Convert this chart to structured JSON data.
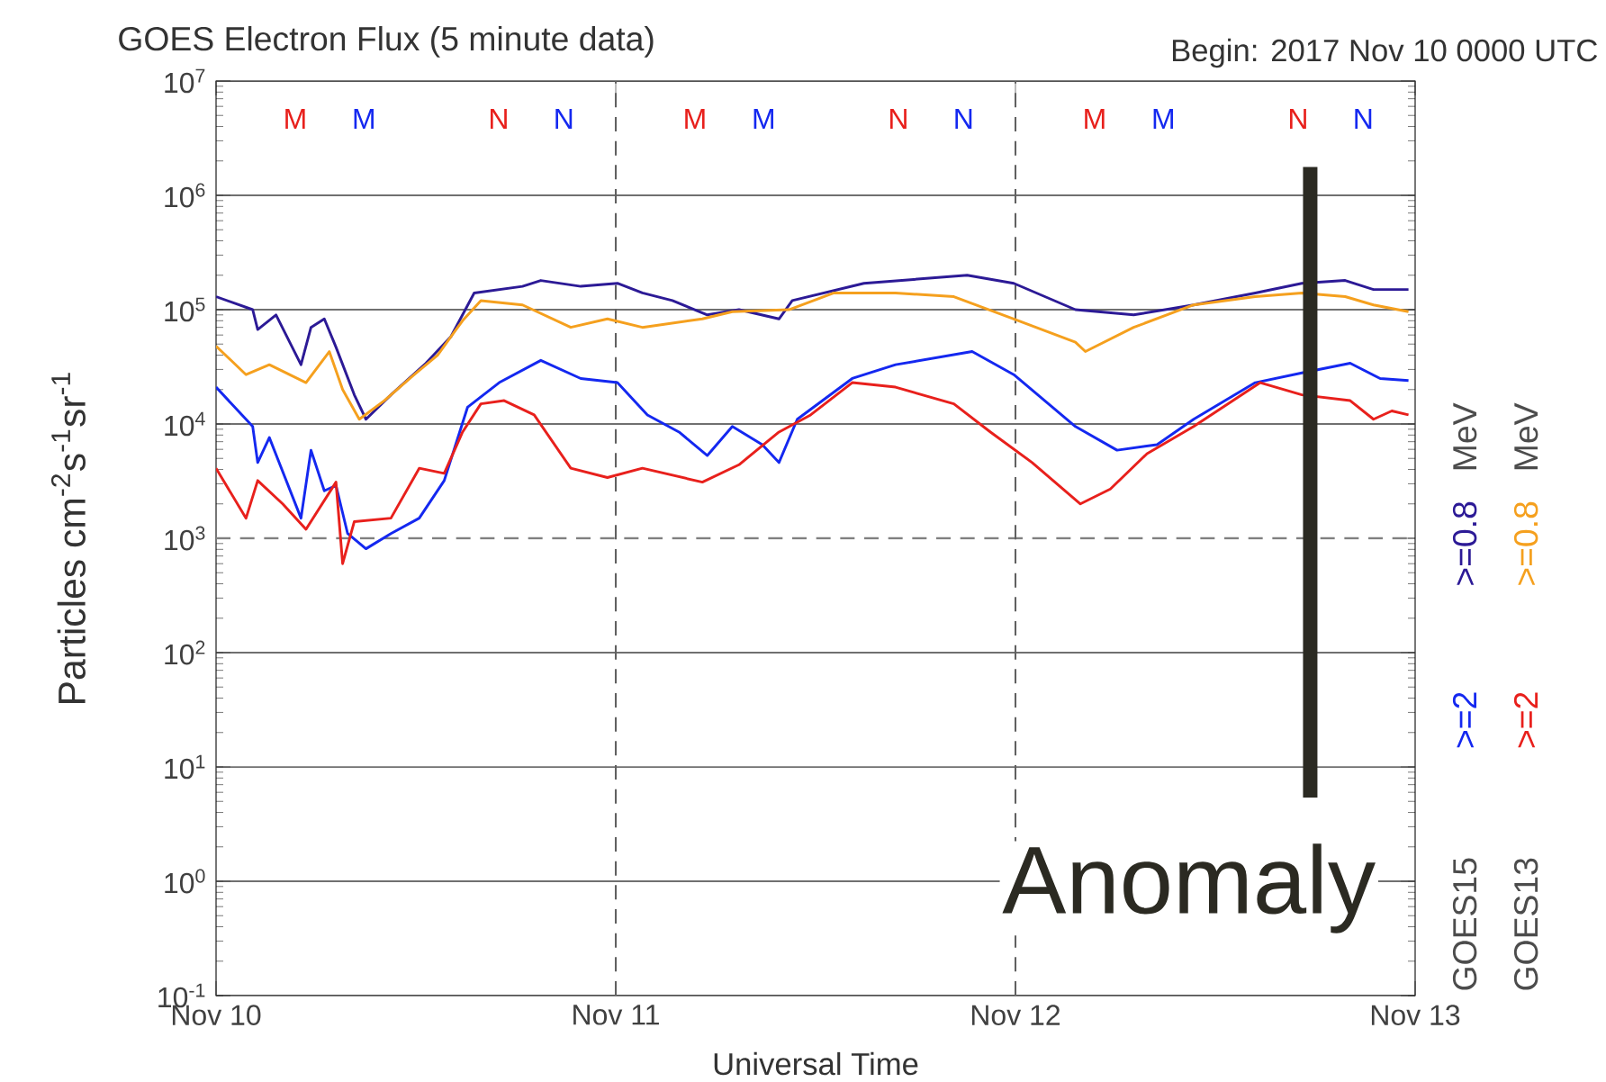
{
  "chart_data": {
    "type": "line",
    "title": "GOES Electron Flux (5 minute data)",
    "subtitle": "Begin: 2017 Nov 10 0000 UTC",
    "xlabel": "Universal Time",
    "ylabel": "Particles cm$^{-2}$s$^{-1}$sr$^{-1}$",
    "xlim": [
      "2017-11-10",
      "2017-11-13"
    ],
    "xticks": [
      {
        "value": "2017-11-10",
        "label": "Nov 10"
      },
      {
        "value": "2017-11-11",
        "label": "Nov 11"
      },
      {
        "value": "2017-11-12",
        "label": "Nov 12"
      },
      {
        "value": "2017-11-13",
        "label": "Nov 13"
      }
    ],
    "ylim": [
      0.1,
      10000000
    ],
    "yticks": [
      {
        "value": 0.1,
        "label": "10$^{-1}$"
      },
      {
        "value": 1,
        "label": "10$^{0}$"
      },
      {
        "value": 10,
        "label": "10$^{1}$"
      },
      {
        "value": 100,
        "label": "10$^{2}$"
      },
      {
        "value": 1000,
        "label": "10$^{3}$"
      },
      {
        "value": 10000,
        "label": "10$^{4}$"
      },
      {
        "value": 100000,
        "label": "10$^{5}$"
      },
      {
        "value": 1000000,
        "label": "10$^{6}$"
      },
      {
        "value": 10000000,
        "label": "10$^{7}$"
      }
    ],
    "log": "y",
    "grid": "y",
    "legend": "right",
    "series": [
      {
        "name": ">=2",
        "color": "#1428f0",
        "x": [
          "2017-11-10T00:00",
          "2017-11-10T02:12",
          "2017-11-10T02:30",
          "2017-11-10T03:12",
          "2017-11-10T05:06",
          "2017-11-10T05:42",
          "2017-11-10T06:30",
          "2017-11-10T07:12",
          "2017-11-10T07:54",
          "2017-11-10T09:00",
          "2017-11-10T10:30",
          "2017-11-10T12:12",
          "2017-11-10T13:42",
          "2017-11-10T15:06",
          "2017-11-10T17:00",
          "2017-11-10T19:30",
          "2017-11-10T21:54",
          "2017-11-11T00:06",
          "2017-11-11T01:54",
          "2017-11-11T03:48",
          "2017-11-11T05:30",
          "2017-11-11T07:00",
          "2017-11-11T08:48",
          "2017-11-11T09:48",
          "2017-11-11T10:54",
          "2017-11-11T14:12",
          "2017-11-11T16:48",
          "2017-11-11T21:24",
          "2017-11-11T23:54",
          "2017-11-12T03:36",
          "2017-11-12T06:06",
          "2017-11-12T08:30",
          "2017-11-12T10:42",
          "2017-11-12T14:24",
          "2017-11-12T17:12",
          "2017-11-12T20:06",
          "2017-11-12T21:54",
          "2017-11-12T23:36"
        ],
        "values": [
          21000,
          9500,
          4600,
          7600,
          1500,
          5900,
          2600,
          2900,
          1100,
          810,
          1100,
          1500,
          3200,
          14000,
          23000,
          36000,
          25000,
          23000,
          12000,
          8500,
          5300,
          9500,
          6600,
          4600,
          11000,
          25000,
          33000,
          43000,
          27000,
          9500,
          5900,
          6600,
          11000,
          23000,
          28000,
          34000,
          25000,
          24000
        ]
      },
      {
        "name": ">=0.8",
        "color": "#2c1a96",
        "x": [
          "2017-11-10T00:00",
          "2017-11-10T02:12",
          "2017-11-10T02:30",
          "2017-11-10T03:36",
          "2017-11-10T05:06",
          "2017-11-10T05:42",
          "2017-11-10T06:30",
          "2017-11-10T07:12",
          "2017-11-10T08:18",
          "2017-11-10T09:00",
          "2017-11-10T10:30",
          "2017-11-10T12:36",
          "2017-11-10T14:06",
          "2017-11-10T15:30",
          "2017-11-10T18:24",
          "2017-11-10T19:30",
          "2017-11-10T21:54",
          "2017-11-11T00:06",
          "2017-11-11T01:36",
          "2017-11-11T03:24",
          "2017-11-11T05:30",
          "2017-11-11T07:24",
          "2017-11-11T09:48",
          "2017-11-11T10:36",
          "2017-11-11T14:54",
          "2017-11-11T21:06",
          "2017-11-11T23:54",
          "2017-11-12T03:36",
          "2017-11-12T07:06",
          "2017-11-12T10:42",
          "2017-11-12T14:24",
          "2017-11-12T17:12",
          "2017-11-12T19:48",
          "2017-11-12T21:30",
          "2017-11-12T23:36"
        ],
        "values": [
          130000,
          100000,
          67000,
          90000,
          33000,
          70000,
          83000,
          47000,
          18000,
          11000,
          18000,
          34000,
          58000,
          140000,
          160000,
          180000,
          160000,
          170000,
          140000,
          120000,
          90000,
          100000,
          83000,
          120000,
          170000,
          200000,
          170000,
          100000,
          90000,
          110000,
          140000,
          170000,
          180000,
          150000,
          150000
        ]
      },
      {
        "name": ">=2",
        "color": "#e8201c",
        "x": [
          "2017-11-10T00:00",
          "2017-11-10T01:48",
          "2017-11-10T02:30",
          "2017-11-10T04:00",
          "2017-11-10T05:24",
          "2017-11-10T07:12",
          "2017-11-10T07:36",
          "2017-11-10T08:18",
          "2017-11-10T10:30",
          "2017-11-10T12:12",
          "2017-11-10T13:42",
          "2017-11-10T14:48",
          "2017-11-10T15:54",
          "2017-11-10T17:18",
          "2017-11-10T19:06",
          "2017-11-10T21:18",
          "2017-11-10T23:30",
          "2017-11-11T01:36",
          "2017-11-11T05:12",
          "2017-11-11T07:24",
          "2017-11-11T09:48",
          "2017-11-11T11:42",
          "2017-11-11T14:12",
          "2017-11-11T16:48",
          "2017-11-11T20:18",
          "2017-11-11T22:30",
          "2017-11-12T01:00",
          "2017-11-12T03:54",
          "2017-11-12T05:42",
          "2017-11-12T07:54",
          "2017-11-12T10:42",
          "2017-11-12T14:42",
          "2017-11-12T17:12",
          "2017-11-12T20:06",
          "2017-11-12T21:30",
          "2017-11-12T22:36",
          "2017-11-12T23:36"
        ],
        "values": [
          4100,
          1500,
          3200,
          2000,
          1200,
          3100,
          600,
          1400,
          1500,
          4100,
          3700,
          8500,
          15000,
          16000,
          12000,
          4100,
          3400,
          4100,
          3100,
          4400,
          8500,
          12000,
          23000,
          21000,
          15000,
          8500,
          4600,
          2000,
          2700,
          5500,
          9500,
          23000,
          18000,
          16000,
          11000,
          13000,
          12000
        ]
      },
      {
        "name": ">=0.8",
        "color": "#f5a01e",
        "x": [
          "2017-11-10T00:00",
          "2017-11-10T01:48",
          "2017-11-10T03:12",
          "2017-11-10T05:24",
          "2017-11-10T06:48",
          "2017-11-10T07:36",
          "2017-11-10T08:36",
          "2017-11-10T10:06",
          "2017-11-10T11:54",
          "2017-11-10T13:18",
          "2017-11-10T14:48",
          "2017-11-10T15:54",
          "2017-11-10T18:24",
          "2017-11-10T21:18",
          "2017-11-10T23:30",
          "2017-11-11T01:36",
          "2017-11-11T05:12",
          "2017-11-11T07:00",
          "2017-11-11T10:24",
          "2017-11-11T13:06",
          "2017-11-11T16:48",
          "2017-11-11T20:18",
          "2017-11-11T23:54",
          "2017-11-12T03:36",
          "2017-11-12T04:12",
          "2017-11-12T07:06",
          "2017-11-12T10:42",
          "2017-11-12T14:24",
          "2017-11-12T17:12",
          "2017-11-12T19:48",
          "2017-11-12T21:30",
          "2017-11-12T23:36"
        ],
        "values": [
          48000,
          27000,
          33000,
          23000,
          43000,
          20000,
          11000,
          16000,
          27000,
          40000,
          80000,
          120000,
          110000,
          70000,
          83000,
          70000,
          83000,
          96000,
          100000,
          140000,
          140000,
          130000,
          83000,
          52000,
          43000,
          70000,
          110000,
          130000,
          140000,
          130000,
          110000,
          96000
        ]
      }
    ],
    "ref_lines": [
      {
        "axis": "y",
        "value": 1000,
        "color": "#808080",
        "line_style": "dashed"
      },
      {
        "axis": "x",
        "value": "2017-11-11",
        "color": "#606060",
        "line_style": "dashed"
      },
      {
        "axis": "x",
        "value": "2017-11-12",
        "color": "#606060",
        "line_style": "dashed"
      },
      {
        "axis": "x",
        "value": "2017-11-12T17:42",
        "label": "Anomaly",
        "color": "#2b2a22",
        "line_style": "solid"
      }
    ],
    "annotations": [
      "GOES15",
      "MeV",
      "GOES13",
      "MeV",
      "M",
      "M",
      "N",
      "N",
      "M",
      "M",
      "N",
      "N",
      "M",
      "M",
      "N",
      "N"
    ]
  }
}
